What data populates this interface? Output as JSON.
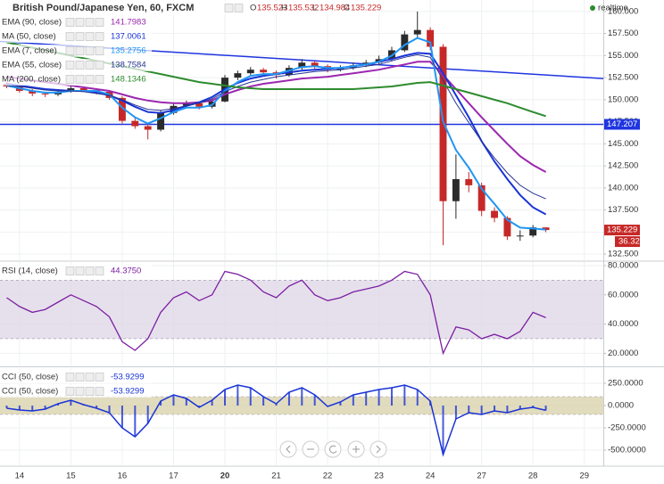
{
  "chart_data": [
    {
      "type": "candlestick",
      "title": "British Pound/Japanese Yen, 60, FXCM",
      "ohlc_keys": [
        "O",
        "H",
        "L",
        "C"
      ],
      "status": "realtime",
      "countdown": "36.32",
      "up_color": "#2b2b2b",
      "down_color": "#c62828",
      "x": [
        -0.25,
        0,
        0.25,
        0.5,
        0.75,
        1,
        1.25,
        1.5,
        1.75,
        2,
        2.25,
        2.5,
        2.75,
        3,
        3.25,
        3.5,
        3.75,
        4,
        4.25,
        4.5,
        4.75,
        5,
        5.25,
        5.5,
        5.75,
        6,
        6.25,
        6.5,
        6.75,
        7,
        7.25,
        7.5,
        7.75,
        8,
        8.25,
        8.5,
        8.75,
        9,
        9.25,
        9.5,
        9.75,
        10,
        10.25
      ],
      "open": [
        151.8,
        151.5,
        151.0,
        150.7,
        150.6,
        150.9,
        151.3,
        151.1,
        150.9,
        150.2,
        147.6,
        147.0,
        146.6,
        148.5,
        149.3,
        149.6,
        149.2,
        149.8,
        152.5,
        153.0,
        153.4,
        153.1,
        152.8,
        153.6,
        154.2,
        153.8,
        153.4,
        153.6,
        153.9,
        154.2,
        154.6,
        155.6,
        157.4,
        157.9,
        156.0,
        138.5,
        141.0,
        140.3,
        137.4,
        136.6,
        134.5,
        134.6,
        135.523
      ],
      "high": [
        152.0,
        151.7,
        151.2,
        150.9,
        151.1,
        151.6,
        151.5,
        151.3,
        151.0,
        150.4,
        148.0,
        147.4,
        148.8,
        149.6,
        149.9,
        149.8,
        150.1,
        152.8,
        153.3,
        153.7,
        153.6,
        153.3,
        153.9,
        154.6,
        154.4,
        154.0,
        153.9,
        154.2,
        154.5,
        155.0,
        156.0,
        157.8,
        160.0,
        158.2,
        156.3,
        143.8,
        141.8,
        140.6,
        137.8,
        136.8,
        135.2,
        135.8,
        135.532
      ],
      "low": [
        151.3,
        150.8,
        150.4,
        150.3,
        150.4,
        150.8,
        150.9,
        150.6,
        150.0,
        147.3,
        146.7,
        145.5,
        146.4,
        148.3,
        149.0,
        148.9,
        149.0,
        149.7,
        152.2,
        152.8,
        152.8,
        152.4,
        152.6,
        153.4,
        153.5,
        153.1,
        153.2,
        153.4,
        153.7,
        154.0,
        154.4,
        155.4,
        157.0,
        155.6,
        133.5,
        136.5,
        139.5,
        136.8,
        136.1,
        134.1,
        134.0,
        134.4,
        134.984
      ],
      "close": [
        151.5,
        151.0,
        150.7,
        150.6,
        150.9,
        151.3,
        151.1,
        150.9,
        150.2,
        147.6,
        147.0,
        146.6,
        148.5,
        149.3,
        149.6,
        149.2,
        149.8,
        152.5,
        153.0,
        153.4,
        153.1,
        152.8,
        153.6,
        154.2,
        153.8,
        153.4,
        153.6,
        153.9,
        154.2,
        154.6,
        155.6,
        157.4,
        157.9,
        156.0,
        138.5,
        141.0,
        140.3,
        137.4,
        136.6,
        134.5,
        134.6,
        135.523,
        135.229
      ],
      "series": [
        {
          "name": "EMA (90, close)",
          "color": "#9c27b0",
          "width": 2,
          "values": [
            152.6,
            152.4,
            152.2,
            152.0,
            151.8,
            151.6,
            151.4,
            151.2,
            151.0,
            150.6,
            150.2,
            149.9,
            149.7,
            149.6,
            149.6,
            149.7,
            149.9,
            150.6,
            151.1,
            151.5,
            151.8,
            152.0,
            152.2,
            152.4,
            152.5,
            152.6,
            152.8,
            153.0,
            153.2,
            153.4,
            153.7,
            154.0,
            154.3,
            154.3,
            152.8,
            151.2,
            149.6,
            148.0,
            146.5,
            145.0,
            143.6,
            142.6,
            141.7983
          ]
        },
        {
          "name": "MA (50, close)",
          "color": "#1a34d6",
          "width": 2,
          "values": [
            151.8,
            151.6,
            151.4,
            151.2,
            151.1,
            151.0,
            151.0,
            150.8,
            150.5,
            149.9,
            149.2,
            148.6,
            148.5,
            148.8,
            149.3,
            149.7,
            150.3,
            151.2,
            151.9,
            152.4,
            152.7,
            152.9,
            153.1,
            153.3,
            153.4,
            153.5,
            153.6,
            153.8,
            154.0,
            154.3,
            154.6,
            155.0,
            155.3,
            155.2,
            153.0,
            150.5,
            148.0,
            145.3,
            143.0,
            141.0,
            139.2,
            137.8,
            137.0061
          ]
        },
        {
          "name": "EMA (7, close)",
          "color": "#2196f3",
          "width": 2,
          "values": [
            151.6,
            151.3,
            151.0,
            150.8,
            150.8,
            151.0,
            151.0,
            151.0,
            150.6,
            149.1,
            148.0,
            147.3,
            147.9,
            148.6,
            149.1,
            149.1,
            149.4,
            151.0,
            152.0,
            152.7,
            152.9,
            152.9,
            153.3,
            153.7,
            153.8,
            153.6,
            153.6,
            153.8,
            154.0,
            154.3,
            155.0,
            156.2,
            157.0,
            156.5,
            147.5,
            144.3,
            142.3,
            139.9,
            138.2,
            136.4,
            135.5,
            135.4,
            135.2756
          ]
        },
        {
          "name": "EMA (55, close)",
          "color": "#283593",
          "width": 1,
          "values": [
            151.6,
            151.5,
            151.3,
            151.1,
            151.0,
            151.0,
            150.9,
            150.7,
            150.5,
            150.0,
            149.4,
            148.9,
            148.8,
            149.0,
            149.3,
            149.6,
            150.1,
            150.9,
            151.5,
            152.0,
            152.3,
            152.6,
            152.8,
            153.0,
            153.2,
            153.3,
            153.4,
            153.6,
            153.8,
            154.0,
            154.4,
            154.8,
            155.1,
            154.8,
            152.2,
            149.6,
            147.4,
            145.3,
            143.4,
            141.7,
            140.3,
            139.4,
            138.7584
          ]
        },
        {
          "name": "MA (200, close)",
          "color": "#2e8b2e",
          "width": 2,
          "values": [
            156.5,
            156.2,
            155.9,
            155.6,
            155.3,
            155.0,
            154.7,
            154.4,
            154.1,
            153.8,
            153.5,
            153.2,
            152.9,
            152.6,
            152.3,
            152.0,
            151.8,
            151.6,
            151.4,
            151.3,
            151.2,
            151.2,
            151.2,
            151.2,
            151.2,
            151.2,
            151.2,
            151.2,
            151.3,
            151.4,
            151.5,
            151.7,
            151.9,
            152.0,
            151.6,
            151.2,
            150.8,
            150.4,
            150.0,
            149.6,
            149.1,
            148.6,
            148.1346
          ]
        }
      ],
      "hlines": [
        {
          "value": 147.207,
          "color": "#1f35e0"
        }
      ],
      "trendlines": [
        {
          "values": [
            156.6,
            152.4
          ],
          "color": "#1f35e0"
        }
      ],
      "xlim": [
        -0.38,
        11.37
      ],
      "ylim": [
        131.8,
        161.3
      ],
      "yticks": [
        {
          "value": 160,
          "label": "160.000"
        },
        {
          "value": 157.5,
          "label": "157.500"
        },
        {
          "value": 155,
          "label": "155.000"
        },
        {
          "value": 152.5,
          "label": "152.500"
        },
        {
          "value": 150,
          "label": "150.000"
        },
        {
          "value": 147.5,
          "label": "147.500"
        },
        {
          "value": 145,
          "label": "145.000"
        },
        {
          "value": 142.5,
          "label": "142.500"
        },
        {
          "value": 140,
          "label": "140.000"
        },
        {
          "value": 137.5,
          "label": "137.500"
        },
        {
          "value": 135,
          "label": "135.000"
        },
        {
          "value": 132.5,
          "label": "132.500"
        }
      ]
    },
    {
      "type": "line",
      "x": [
        -0.25,
        0,
        0.25,
        0.5,
        0.75,
        1,
        1.25,
        1.5,
        1.75,
        2,
        2.25,
        2.5,
        2.75,
        3,
        3.25,
        3.5,
        3.75,
        4,
        4.25,
        4.5,
        4.75,
        5,
        5.25,
        5.5,
        5.75,
        6,
        6.25,
        6.5,
        6.75,
        7,
        7.25,
        7.5,
        7.75,
        8,
        8.25,
        8.5,
        8.75,
        9,
        9.25,
        9.5,
        9.75,
        10,
        10.25
      ],
      "series": [
        {
          "name": "RSI (14, close)",
          "color": "#7b1fa2",
          "legend_value": "44.3750",
          "values": [
            58,
            52,
            48,
            50,
            55,
            60,
            56,
            52,
            45,
            28,
            22,
            30,
            48,
            58,
            62,
            56,
            60,
            76,
            74,
            70,
            62,
            58,
            66,
            70,
            60,
            56,
            58,
            62,
            64,
            66,
            70,
            76,
            74,
            60,
            20,
            38,
            36,
            30,
            33,
            30,
            35,
            48,
            44.375
          ]
        }
      ],
      "band": [
        30,
        70
      ],
      "band_color": "#ddd5e6",
      "xlim": [
        -0.38,
        11.37
      ],
      "ylim": [
        11.7,
        82.4
      ],
      "yticks": [
        {
          "value": 80,
          "label": "80.0000"
        },
        {
          "value": 60,
          "label": "60.0000"
        },
        {
          "value": 40,
          "label": "40.0000"
        },
        {
          "value": 20,
          "label": "20.0000"
        }
      ]
    },
    {
      "type": "column-line",
      "x": [
        -0.25,
        0,
        0.25,
        0.5,
        0.75,
        1,
        1.25,
        1.5,
        1.75,
        2,
        2.25,
        2.5,
        2.75,
        3,
        3.25,
        3.5,
        3.75,
        4,
        4.25,
        4.5,
        4.75,
        5,
        5.25,
        5.5,
        5.75,
        6,
        6.25,
        6.5,
        6.75,
        7,
        7.25,
        7.5,
        7.75,
        8,
        8.25,
        8.5,
        8.75,
        9,
        9.25,
        9.5,
        9.75,
        10,
        10.25
      ],
      "series": [
        {
          "name": "CCI (50, close)",
          "color": "#1a34d6",
          "values": [
            -30,
            -50,
            -60,
            -40,
            20,
            60,
            10,
            -30,
            -80,
            -250,
            -350,
            -200,
            50,
            120,
            80,
            -20,
            60,
            180,
            230,
            200,
            100,
            20,
            150,
            200,
            120,
            -10,
            40,
            120,
            150,
            180,
            200,
            230,
            180,
            50,
            -550,
            -150,
            -80,
            -100,
            -60,
            -80,
            -40,
            -20,
            -53.9299
          ]
        },
        {
          "name": "CCI (50, close)",
          "color": "#1a34d6",
          "values": [
            -30,
            -50,
            -60,
            -40,
            20,
            60,
            10,
            -30,
            -80,
            -250,
            -350,
            -200,
            50,
            120,
            80,
            -20,
            60,
            180,
            230,
            200,
            100,
            20,
            150,
            200,
            120,
            -10,
            40,
            120,
            150,
            180,
            200,
            230,
            180,
            50,
            -550,
            -150,
            -80,
            -100,
            -60,
            -80,
            -40,
            -20,
            -53.9299
          ]
        }
      ],
      "band": [
        -100,
        100
      ],
      "band_color": "#d8d0a8",
      "xlim": [
        -0.38,
        11.37
      ],
      "ylim": [
        -670,
        420
      ],
      "yticks": [
        {
          "value": 250,
          "label": "250.0000"
        },
        {
          "value": 0,
          "label": "0.0000"
        },
        {
          "value": -250,
          "label": "-250.0000"
        },
        {
          "value": -500,
          "label": "-500.0000"
        }
      ],
      "xticks": [
        {
          "value": 0,
          "label": "14"
        },
        {
          "value": 1,
          "label": "15"
        },
        {
          "value": 2,
          "label": "16"
        },
        {
          "value": 3,
          "label": "17"
        },
        {
          "value": 4,
          "label": "20"
        },
        {
          "value": 5,
          "label": "21"
        },
        {
          "value": 6,
          "label": "22"
        },
        {
          "value": 7,
          "label": "23"
        },
        {
          "value": 8,
          "label": "24"
        },
        {
          "value": 9,
          "label": "27"
        },
        {
          "value": 10,
          "label": "28"
        },
        {
          "value": 11,
          "label": "29"
        }
      ]
    }
  ]
}
